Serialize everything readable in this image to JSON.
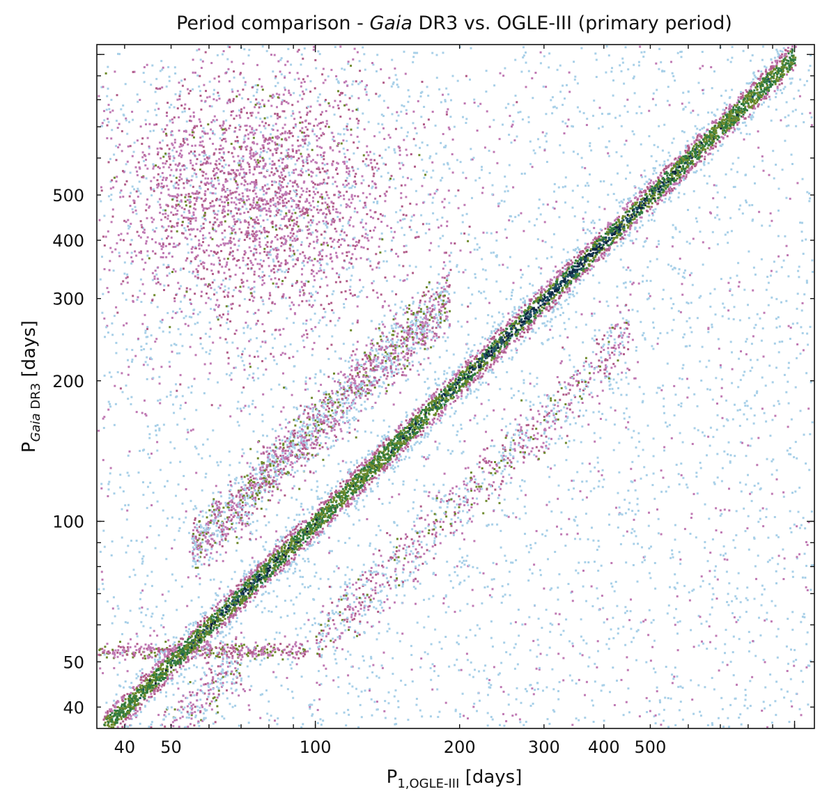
{
  "chart_data": {
    "type": "scatter",
    "title": "Period comparison - Gaia DR3 vs. OGLE-III (primary period)",
    "title_parts": {
      "pre": "Period comparison - ",
      "italic": "Gaia",
      "post": " DR3 vs. OGLE-III (primary period)"
    },
    "xlabel": "P1,OGLE-III [days]",
    "xlabel_parts": {
      "main": "P",
      "sub": "1,OGLE-III",
      "unit": " [days]"
    },
    "ylabel": "P Gaia DR3 [days]",
    "ylabel_parts": {
      "main": "P",
      "sub_italic": "Gaia",
      "sub": " DR3",
      "unit": " [days]"
    },
    "xscale": "log",
    "yscale": "log",
    "xlim": [
      35,
      1100
    ],
    "ylim": [
      36,
      1050
    ],
    "x_ticks": [
      40,
      50,
      100,
      200,
      300,
      400,
      500
    ],
    "y_ticks": [
      40,
      50,
      100,
      200,
      300,
      400,
      500
    ],
    "grid": false,
    "colormap": [
      "#a8d0e8",
      "#c07ab4",
      "#b15c88",
      "#6e8a2c",
      "#2f7a3f",
      "#1d4e64",
      "#0f2440"
    ],
    "series": [
      {
        "description": "dense diagonal ridge",
        "x_range": [
          36,
          1000
        ],
        "ratio": 1.0
      },
      {
        "description": "upper secondary branch",
        "x_range": [
          55,
          190
        ],
        "ratio": 1.6
      },
      {
        "description": "lower secondary branch",
        "x_range": [
          100,
          450
        ],
        "ratio": 0.55
      },
      {
        "description": "low-x faint diagonal",
        "x_range": [
          36,
          70
        ],
        "ratio": 0.72
      },
      {
        "description": "upper-left cloud",
        "x_center": 75,
        "y_center": 500
      },
      {
        "description": "horizontal band",
        "y_value": 53,
        "x_range": [
          35,
          95
        ]
      }
    ]
  }
}
